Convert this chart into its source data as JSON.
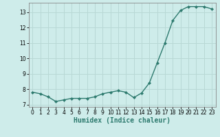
{
  "x": [
    0,
    1,
    2,
    3,
    4,
    5,
    6,
    7,
    8,
    9,
    10,
    11,
    12,
    13,
    14,
    15,
    16,
    17,
    18,
    19,
    20,
    21,
    22,
    23
  ],
  "y": [
    7.8,
    7.7,
    7.5,
    7.2,
    7.3,
    7.4,
    7.4,
    7.4,
    7.5,
    7.7,
    7.8,
    7.9,
    7.8,
    7.45,
    7.75,
    8.4,
    9.7,
    11.0,
    12.45,
    13.1,
    13.35,
    13.35,
    13.35,
    13.2
  ],
  "line_color": "#2d7a6e",
  "marker": "D",
  "marker_size": 2.2,
  "bg_color": "#ceecea",
  "grid_color": "#b8d8d5",
  "spine_color": "#888888",
  "xlabel": "Humidex (Indice chaleur)",
  "xlim": [
    -0.5,
    23.5
  ],
  "ylim": [
    6.85,
    13.6
  ],
  "yticks": [
    7,
    8,
    9,
    10,
    11,
    12,
    13
  ],
  "xticks": [
    0,
    1,
    2,
    3,
    4,
    5,
    6,
    7,
    8,
    9,
    10,
    11,
    12,
    13,
    14,
    15,
    16,
    17,
    18,
    19,
    20,
    21,
    22,
    23
  ],
  "tick_fontsize": 5.5,
  "xlabel_fontsize": 7.0,
  "line_width": 1.0
}
